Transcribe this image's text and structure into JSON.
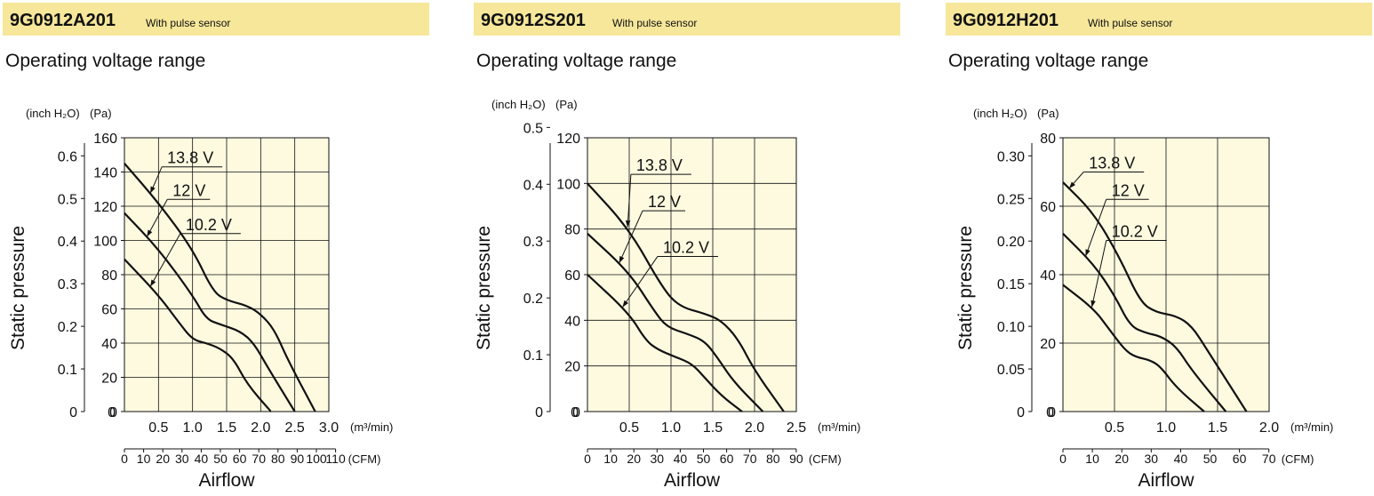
{
  "panels": [
    {
      "model": "9G0912A201",
      "sensor": "With pulse sensor",
      "subtitle": "Operating voltage range"
    },
    {
      "model": "9G0912S201",
      "sensor": "With pulse sensor",
      "subtitle": "Operating voltage range"
    },
    {
      "model": "9G0912H201",
      "sensor": "With pulse sensor",
      "subtitle": "Operating voltage range"
    }
  ],
  "colors": {
    "header_bg": "#f6e79a",
    "plot_bg": "#fdfae0",
    "line": "#111111"
  },
  "chart_data": [
    {
      "type": "line",
      "grid": true,
      "ylabel": "Static pressure",
      "xlabel": "Airflow",
      "y_unit_inch": "(inch H₂O)",
      "y_unit_pa": "(Pa)",
      "x_unit_m3": "(m³/min)",
      "x_unit_cfm": "(CFM)",
      "xlim": [
        0,
        3.0
      ],
      "ylim": [
        0,
        160
      ],
      "x_ticks": [
        "0.5",
        "1.0",
        "1.5",
        "2.0",
        "2.5",
        "3.0"
      ],
      "x_tick_values": [
        0.5,
        1.0,
        1.5,
        2.0,
        2.5,
        3.0
      ],
      "pa_ticks": [
        "0",
        "20",
        "40",
        "60",
        "80",
        "100",
        "120",
        "140",
        "160"
      ],
      "pa_tick_values": [
        0,
        20,
        40,
        60,
        80,
        100,
        120,
        140,
        160
      ],
      "inch_ticks": [
        "0",
        "0.1",
        "0.2",
        "0.3",
        "0.4",
        "0.5",
        "0.6"
      ],
      "inch_tick_values": [
        0,
        0.1,
        0.2,
        0.3,
        0.4,
        0.5,
        0.6
      ],
      "cfm_ticks": [
        "0",
        "10",
        "20",
        "30",
        "40",
        "50",
        "60",
        "70",
        "80",
        "90",
        "100",
        "110"
      ],
      "cfm_tick_values": [
        0,
        10,
        20,
        30,
        40,
        50,
        60,
        70,
        80,
        90,
        100,
        110
      ],
      "series": [
        {
          "name": "13.8 V",
          "x": [
            0,
            0.5,
            1.0,
            1.3,
            1.5,
            1.8,
            2.0,
            2.2,
            2.4,
            2.8
          ],
          "y": [
            145,
            122,
            95,
            70,
            65,
            62,
            57,
            48,
            30,
            0
          ]
        },
        {
          "name": "12 V",
          "x": [
            0,
            0.5,
            1.0,
            1.2,
            1.4,
            1.7,
            1.9,
            2.1,
            2.5
          ],
          "y": [
            116,
            95,
            68,
            54,
            51,
            47,
            40,
            26,
            0
          ]
        },
        {
          "name": "10.2 V",
          "x": [
            0,
            0.5,
            0.8,
            1.0,
            1.2,
            1.4,
            1.6,
            1.8,
            2.15
          ],
          "y": [
            89,
            68,
            52,
            42,
            40,
            37,
            31,
            16,
            0
          ]
        }
      ],
      "callouts": [
        {
          "series": "13.8 V",
          "at_x": 0.38,
          "text_x": 0.55,
          "text_y": 143
        },
        {
          "series": "12 V",
          "at_x": 0.33,
          "text_x": 0.63,
          "text_y": 124
        },
        {
          "series": "10.2 V",
          "at_x": 0.38,
          "text_x": 0.82,
          "text_y": 104
        }
      ]
    },
    {
      "type": "line",
      "grid": true,
      "ylabel": "Static pressure",
      "xlabel": "Airflow",
      "y_unit_inch": "(inch H₂O)",
      "y_unit_pa": "(Pa)",
      "x_unit_m3": "(m³/min)",
      "x_unit_cfm": "(CFM)",
      "xlim": [
        0,
        2.5
      ],
      "ylim": [
        0,
        120
      ],
      "x_ticks": [
        "0.5",
        "1.0",
        "1.5",
        "2.0",
        "2.5"
      ],
      "x_tick_values": [
        0.5,
        1.0,
        1.5,
        2.0,
        2.5
      ],
      "pa_ticks": [
        "0",
        "20",
        "40",
        "60",
        "80",
        "100",
        "120"
      ],
      "pa_tick_values": [
        0,
        20,
        40,
        60,
        80,
        100,
        120
      ],
      "inch_ticks": [
        "0",
        "0.1",
        "0.2",
        "0.3",
        "0.4",
        "0.5"
      ],
      "inch_tick_values": [
        0,
        0.1,
        0.2,
        0.3,
        0.4,
        0.5
      ],
      "cfm_ticks": [
        "0",
        "10",
        "20",
        "30",
        "40",
        "50",
        "60",
        "70",
        "80",
        "90"
      ],
      "cfm_tick_values": [
        0,
        10,
        20,
        30,
        40,
        50,
        60,
        70,
        80,
        90
      ],
      "series": [
        {
          "name": "13.8 V",
          "x": [
            0,
            0.5,
            0.9,
            1.1,
            1.4,
            1.6,
            1.8,
            2.0,
            2.35
          ],
          "y": [
            100,
            80,
            54,
            46,
            43,
            40,
            32,
            18,
            0
          ]
        },
        {
          "name": "12 V",
          "x": [
            0,
            0.5,
            0.8,
            0.95,
            1.2,
            1.4,
            1.55,
            1.75,
            2.1
          ],
          "y": [
            78,
            61,
            44,
            37,
            34,
            31,
            24,
            13,
            0
          ]
        },
        {
          "name": "10.2 V",
          "x": [
            0,
            0.5,
            0.7,
            0.85,
            1.05,
            1.25,
            1.4,
            1.6,
            1.85
          ],
          "y": [
            60,
            43,
            31,
            27,
            24,
            21,
            15,
            7,
            0
          ]
        }
      ],
      "callouts": [
        {
          "series": "13.8 V",
          "at_x": 0.48,
          "text_x": 0.52,
          "text_y": 104
        },
        {
          "series": "12 V",
          "at_x": 0.38,
          "text_x": 0.66,
          "text_y": 88
        },
        {
          "series": "10.2 V",
          "at_x": 0.42,
          "text_x": 0.84,
          "text_y": 68
        }
      ]
    },
    {
      "type": "line",
      "grid": true,
      "ylabel": "Static pressure",
      "xlabel": "Airflow",
      "y_unit_inch": "(inch H₂O)",
      "y_unit_pa": "(Pa)",
      "x_unit_m3": "(m³/min)",
      "x_unit_cfm": "(CFM)",
      "xlim": [
        0,
        2.0
      ],
      "ylim": [
        0,
        80
      ],
      "x_ticks": [
        "0.5",
        "1.0",
        "1.5",
        "2.0"
      ],
      "x_tick_values": [
        0.5,
        1.0,
        1.5,
        2.0
      ],
      "pa_ticks": [
        "0",
        "20",
        "40",
        "60",
        "80"
      ],
      "pa_tick_values": [
        0,
        20,
        40,
        60,
        80
      ],
      "inch_ticks": [
        "0",
        "0.05",
        "0.10",
        "0.15",
        "0.20",
        "0.25",
        "0.30"
      ],
      "inch_tick_values": [
        0,
        0.05,
        0.1,
        0.15,
        0.2,
        0.25,
        0.3
      ],
      "cfm_ticks": [
        "0",
        "10",
        "20",
        "30",
        "40",
        "50",
        "60",
        "70"
      ],
      "cfm_tick_values": [
        0,
        10,
        20,
        30,
        40,
        50,
        60,
        70
      ],
      "series": [
        {
          "name": "13.8 V",
          "x": [
            0,
            0.3,
            0.55,
            0.75,
            0.9,
            1.1,
            1.25,
            1.4,
            1.78
          ],
          "y": [
            67,
            58,
            45,
            32,
            29,
            28,
            25,
            18,
            0
          ]
        },
        {
          "name": "12 V",
          "x": [
            0,
            0.3,
            0.5,
            0.65,
            0.8,
            0.95,
            1.1,
            1.25,
            1.58
          ],
          "y": [
            52,
            43,
            34,
            25,
            23,
            22,
            19,
            12,
            0
          ]
        },
        {
          "name": "10.2 V",
          "x": [
            0,
            0.3,
            0.45,
            0.6,
            0.7,
            0.85,
            0.95,
            1.1,
            1.37
          ],
          "y": [
            37,
            30,
            24,
            18,
            16,
            15,
            13,
            7,
            0
          ]
        }
      ],
      "callouts": [
        {
          "series": "13.8 V",
          "at_x": 0.06,
          "text_x": 0.2,
          "text_y": 70
        },
        {
          "series": "12 V",
          "at_x": 0.22,
          "text_x": 0.42,
          "text_y": 62
        },
        {
          "series": "10.2 V",
          "at_x": 0.28,
          "text_x": 0.42,
          "text_y": 50
        }
      ]
    }
  ]
}
